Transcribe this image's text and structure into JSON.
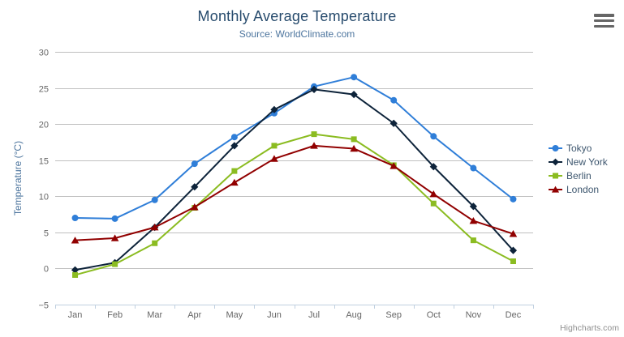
{
  "header": {
    "title": "Monthly Average Temperature",
    "subtitle": "Source: WorldClimate.com"
  },
  "credits": "Highcharts.com",
  "chart_data": {
    "type": "line",
    "title": "Monthly Average Temperature",
    "subtitle": "Source: WorldClimate.com",
    "categories": [
      "Jan",
      "Feb",
      "Mar",
      "Apr",
      "May",
      "Jun",
      "Jul",
      "Aug",
      "Sep",
      "Oct",
      "Nov",
      "Dec"
    ],
    "series": [
      {
        "name": "Tokyo",
        "color": "#2f7ed8",
        "marker": "circle",
        "values": [
          7.0,
          6.9,
          9.5,
          14.5,
          18.2,
          21.5,
          25.2,
          26.5,
          23.3,
          18.3,
          13.9,
          9.6
        ]
      },
      {
        "name": "New York",
        "color": "#0d233a",
        "marker": "diamond",
        "values": [
          -0.2,
          0.8,
          5.7,
          11.3,
          17.0,
          22.0,
          24.8,
          24.1,
          20.1,
          14.1,
          8.6,
          2.5
        ]
      },
      {
        "name": "Berlin",
        "color": "#8bbc21",
        "marker": "square",
        "values": [
          -0.9,
          0.6,
          3.5,
          8.4,
          13.5,
          17.0,
          18.6,
          17.9,
          14.3,
          9.0,
          3.9,
          1.0
        ]
      },
      {
        "name": "London",
        "color": "#910000",
        "marker": "triangle",
        "values": [
          3.9,
          4.2,
          5.7,
          8.5,
          11.9,
          15.2,
          17.0,
          16.6,
          14.2,
          10.3,
          6.6,
          4.8
        ]
      }
    ],
    "xlabel": "",
    "ylabel": "Temperature (°C)",
    "ylim": [
      -5,
      30
    ],
    "yticks": [
      -5,
      0,
      5,
      10,
      15,
      20,
      25,
      30
    ],
    "grid": true,
    "legend_position": "right"
  },
  "colors": {
    "grid_line": "#C0C0C0",
    "axis_line": "#C0D0E0",
    "tick_label": "#666666",
    "axis_title": "#4d759e",
    "title": "#274b6d",
    "subtitle": "#4d759e",
    "legend_text": "#3E576F",
    "credits": "#909090",
    "menu_bars": "#666666",
    "background": "#ffffff"
  }
}
